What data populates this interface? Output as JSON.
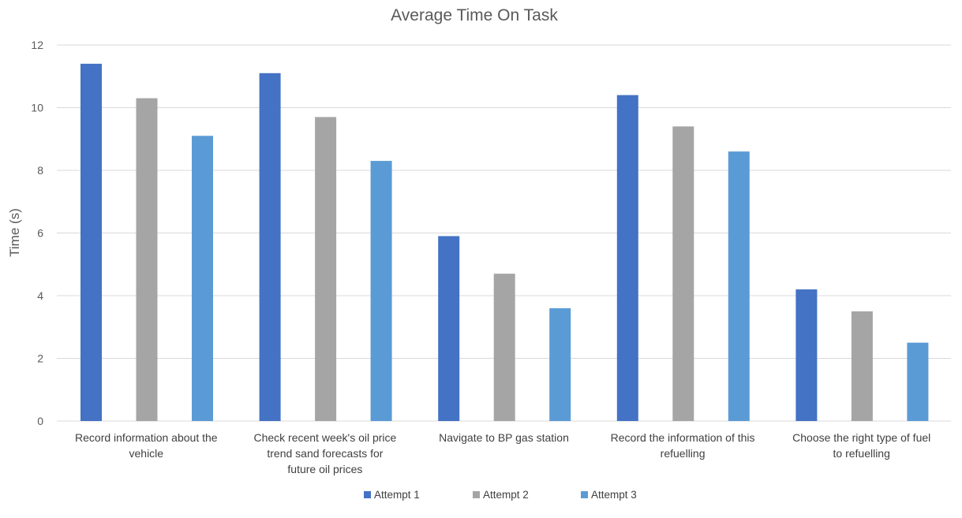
{
  "chart_data": {
    "type": "bar",
    "title": "Average Time On Task",
    "ylabel": "Time (s)",
    "xlabel": "",
    "ylim": [
      0,
      12
    ],
    "yticks": [
      0,
      2,
      4,
      6,
      8,
      10,
      12
    ],
    "grid": true,
    "legend_position": "bottom",
    "categories": [
      [
        "Record information about the",
        "vehicle"
      ],
      [
        "Check recent week's oil price",
        "trend sand forecasts for",
        "future oil prices"
      ],
      [
        "Navigate to BP gas station"
      ],
      [
        "Record the information of this",
        "refuelling"
      ],
      [
        "Choose the right type of fuel",
        "to refuelling"
      ]
    ],
    "series": [
      {
        "name": "Attempt 1",
        "color": "#4472c4",
        "values": [
          11.4,
          11.1,
          5.9,
          10.4,
          4.2
        ]
      },
      {
        "name": "Attempt 2",
        "color": "#a5a5a5",
        "values": [
          10.3,
          9.7,
          4.7,
          9.4,
          3.5
        ]
      },
      {
        "name": "Attempt 3",
        "color": "#5b9bd5",
        "values": [
          9.1,
          8.3,
          3.6,
          8.6,
          2.5
        ]
      }
    ]
  }
}
